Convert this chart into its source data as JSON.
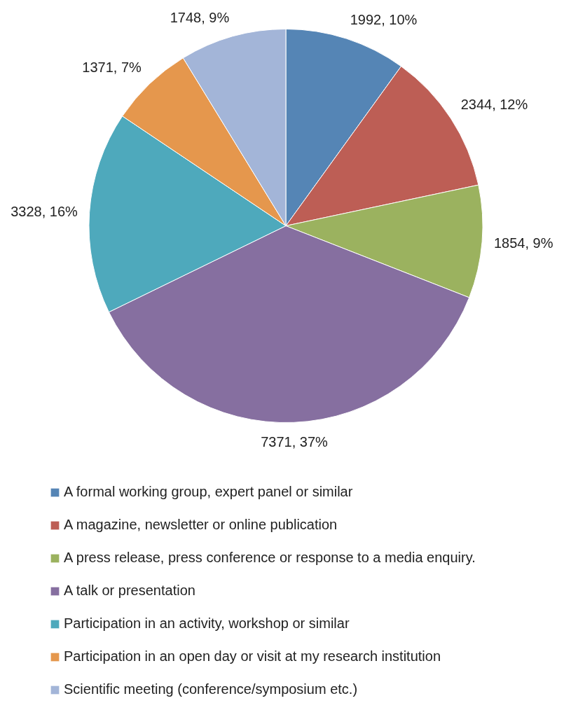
{
  "chart_data": {
    "type": "pie",
    "categories": [
      "A formal working group, expert panel or similar",
      "A magazine, newsletter or online publication",
      "A press release, press conference or response to a media enquiry.",
      "A talk or presentation",
      "Participation in an activity, workshop or similar",
      "Participation in an open day or visit at my research institution",
      "Scientific meeting (conference/symposium etc.)"
    ],
    "values": [
      1992,
      2344,
      1854,
      7371,
      3328,
      1371,
      1748
    ],
    "colors": [
      "#5585b5",
      "#bd5e55",
      "#9bb25f",
      "#866fa0",
      "#4ea9bc",
      "#e5974d",
      "#a3b5d8"
    ],
    "value_labels": [
      "1992, 10%",
      "2344, 12%",
      "1854, 9%",
      "7371, 37%",
      "3328, 16%",
      "1371, 7%",
      "1748, 9%"
    ],
    "legend": "bottom"
  }
}
